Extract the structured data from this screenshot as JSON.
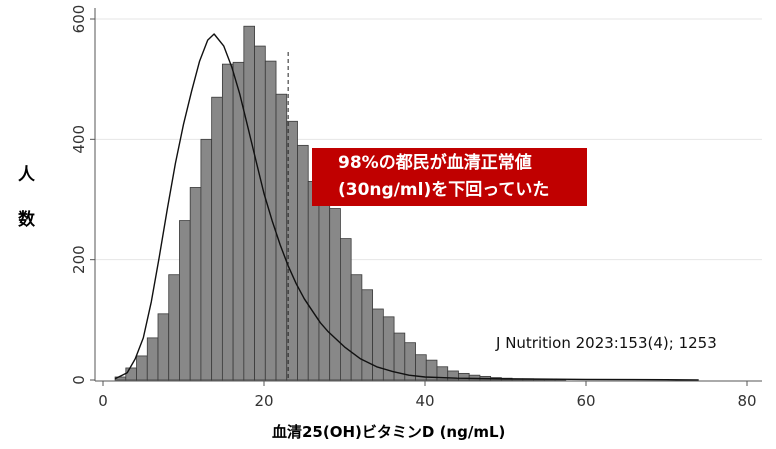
{
  "chart_data": {
    "type": "bar",
    "title": "",
    "xlabel": "血清25(OH)ビタミンD (ng/mL)",
    "ylabel": "人数",
    "ylabel_chars": [
      "人",
      "数"
    ],
    "xlim": [
      0,
      80
    ],
    "ylim": [
      0,
      600
    ],
    "xticks": [
      "0",
      "20",
      "40",
      "60",
      "80"
    ],
    "yticks": [
      "0",
      "200",
      "400",
      "600"
    ],
    "xtick_values": [
      0,
      20,
      40,
      60,
      80
    ],
    "ytick_values": [
      0,
      200,
      400,
      600
    ],
    "grid": "horizontal",
    "bin_width": 1.333,
    "bin_start": 1.5,
    "values": [
      5,
      20,
      40,
      70,
      110,
      175,
      265,
      320,
      400,
      470,
      525,
      528,
      588,
      555,
      530,
      475,
      430,
      390,
      330,
      318,
      285,
      235,
      175,
      150,
      118,
      105,
      78,
      62,
      42,
      33,
      22,
      15,
      11,
      8,
      6,
      4,
      3,
      2,
      2,
      1,
      1,
      1
    ],
    "density_curve": {
      "x": [
        1.5,
        3,
        4,
        5,
        6,
        7,
        8,
        9,
        10,
        11,
        12,
        13,
        13.8,
        15,
        16,
        17,
        18,
        19,
        20,
        21,
        22,
        23,
        24,
        25,
        26,
        27,
        28,
        30,
        32,
        34,
        36,
        38,
        40,
        44,
        50,
        60,
        70,
        74
      ],
      "y": [
        2,
        12,
        35,
        70,
        130,
        205,
        285,
        360,
        425,
        480,
        530,
        565,
        575,
        555,
        520,
        475,
        420,
        365,
        310,
        265,
        225,
        190,
        160,
        135,
        115,
        95,
        80,
        55,
        35,
        22,
        14,
        8,
        5,
        3,
        2,
        1,
        0.5,
        0
      ]
    },
    "reference_line": {
      "x": 23,
      "style": "dashed"
    },
    "colors": {
      "bar_fill": "#888888",
      "bar_stroke": "#3a3a3a",
      "curve": "#111111",
      "grid": "#e6e6e6",
      "axis": "#555555"
    }
  },
  "callout": {
    "line1": "98%の都民が血清正常値",
    "line2": "(30ng/ml)を下回っていた",
    "bg_color": "#c00000"
  },
  "citation": "J Nutrition 2023:153(4); 1253"
}
